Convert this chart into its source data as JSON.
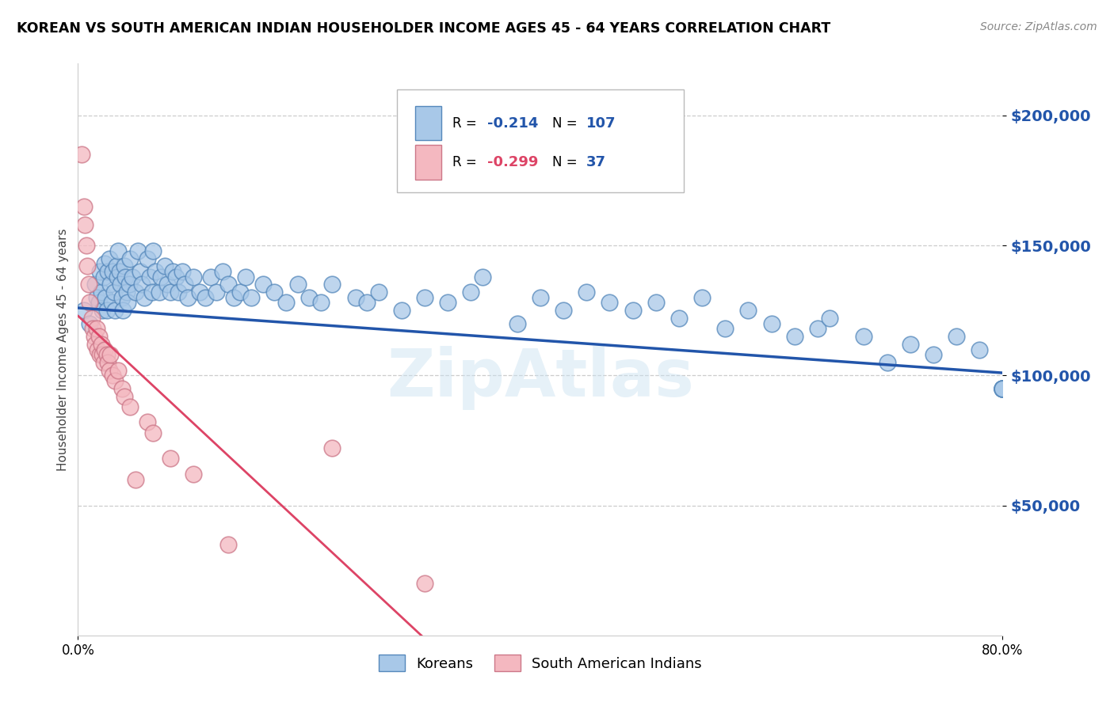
{
  "title": "KOREAN VS SOUTH AMERICAN INDIAN HOUSEHOLDER INCOME AGES 45 - 64 YEARS CORRELATION CHART",
  "source": "Source: ZipAtlas.com",
  "ylabel": "Householder Income Ages 45 - 64 years",
  "ytick_values": [
    50000,
    100000,
    150000,
    200000
  ],
  "ylim": [
    0,
    220000
  ],
  "xlim": [
    0.0,
    0.8
  ],
  "korean_R": "-0.214",
  "korean_N": "107",
  "sai_R": "-0.299",
  "sai_N": "37",
  "korean_dot_color": "#a8c8e8",
  "korean_dot_edge": "#5588bb",
  "sai_dot_color": "#f4b8c0",
  "sai_dot_edge": "#cc7788",
  "korean_line_color": "#2255aa",
  "sai_line_color": "#dd4466",
  "legend_labels": [
    "Koreans",
    "South American Indians"
  ],
  "watermark": "ZipAtlas",
  "korean_scatter_x": [
    0.005,
    0.01,
    0.015,
    0.016,
    0.018,
    0.019,
    0.02,
    0.021,
    0.022,
    0.023,
    0.024,
    0.025,
    0.026,
    0.027,
    0.028,
    0.029,
    0.03,
    0.031,
    0.032,
    0.033,
    0.034,
    0.035,
    0.036,
    0.037,
    0.038,
    0.039,
    0.04,
    0.041,
    0.042,
    0.043,
    0.044,
    0.045,
    0.047,
    0.05,
    0.052,
    0.054,
    0.055,
    0.057,
    0.06,
    0.062,
    0.064,
    0.065,
    0.067,
    0.07,
    0.072,
    0.075,
    0.077,
    0.08,
    0.082,
    0.085,
    0.087,
    0.09,
    0.092,
    0.095,
    0.1,
    0.105,
    0.11,
    0.115,
    0.12,
    0.125,
    0.13,
    0.135,
    0.14,
    0.145,
    0.15,
    0.16,
    0.17,
    0.18,
    0.19,
    0.2,
    0.21,
    0.22,
    0.24,
    0.25,
    0.26,
    0.28,
    0.3,
    0.32,
    0.34,
    0.35,
    0.38,
    0.4,
    0.42,
    0.44,
    0.46,
    0.48,
    0.5,
    0.52,
    0.54,
    0.56,
    0.58,
    0.6,
    0.62,
    0.64,
    0.65,
    0.68,
    0.7,
    0.72,
    0.74,
    0.76,
    0.78,
    0.8,
    0.8,
    0.8,
    0.8,
    0.8,
    0.8
  ],
  "korean_scatter_y": [
    125000,
    120000,
    135000,
    130000,
    128000,
    140000,
    132000,
    125000,
    138000,
    143000,
    130000,
    125000,
    140000,
    145000,
    135000,
    128000,
    140000,
    132000,
    125000,
    142000,
    138000,
    148000,
    140000,
    135000,
    130000,
    125000,
    142000,
    138000,
    132000,
    128000,
    135000,
    145000,
    138000,
    132000,
    148000,
    140000,
    135000,
    130000,
    145000,
    138000,
    132000,
    148000,
    140000,
    132000,
    138000,
    142000,
    135000,
    132000,
    140000,
    138000,
    132000,
    140000,
    135000,
    130000,
    138000,
    132000,
    130000,
    138000,
    132000,
    140000,
    135000,
    130000,
    132000,
    138000,
    130000,
    135000,
    132000,
    128000,
    135000,
    130000,
    128000,
    135000,
    130000,
    128000,
    132000,
    125000,
    130000,
    128000,
    132000,
    138000,
    120000,
    130000,
    125000,
    132000,
    128000,
    125000,
    128000,
    122000,
    130000,
    118000,
    125000,
    120000,
    115000,
    118000,
    122000,
    115000,
    105000,
    112000,
    108000,
    115000,
    110000,
    95000,
    95000,
    95000,
    95000,
    95000,
    95000
  ],
  "sai_scatter_x": [
    0.003,
    0.005,
    0.006,
    0.007,
    0.008,
    0.009,
    0.01,
    0.012,
    0.013,
    0.014,
    0.015,
    0.016,
    0.017,
    0.018,
    0.019,
    0.02,
    0.021,
    0.022,
    0.023,
    0.025,
    0.026,
    0.027,
    0.028,
    0.03,
    0.032,
    0.035,
    0.038,
    0.04,
    0.045,
    0.05,
    0.06,
    0.065,
    0.08,
    0.1,
    0.13,
    0.22,
    0.3
  ],
  "sai_scatter_y": [
    185000,
    165000,
    158000,
    150000,
    142000,
    135000,
    128000,
    122000,
    118000,
    115000,
    112000,
    118000,
    110000,
    115000,
    108000,
    112000,
    108000,
    105000,
    110000,
    108000,
    105000,
    102000,
    108000,
    100000,
    98000,
    102000,
    95000,
    92000,
    88000,
    60000,
    82000,
    78000,
    68000,
    62000,
    35000,
    72000,
    20000
  ]
}
